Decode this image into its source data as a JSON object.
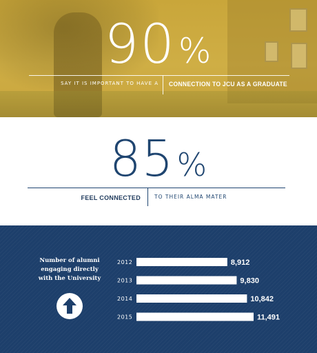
{
  "top": {
    "big_number": "90",
    "big_pct": "%",
    "left_text": "SAY IT IS IMPORTANT TO HAVE A",
    "right_text": "CONNECTION TO JCU AS A GRADUATE"
  },
  "mid": {
    "big_number": "85",
    "big_pct": "%",
    "left_text": "FEEL CONNECTED",
    "right_text": "TO THEIR ALMA MATER"
  },
  "icons": {
    "trend": "up-arrow-icon"
  },
  "colors": {
    "gold": "#c9a63a",
    "navy": "#1d3f6b",
    "navy_text": "#1f4570",
    "bar": "#ffffff"
  },
  "chart_data": {
    "type": "bar",
    "orientation": "horizontal",
    "title": "Number of alumni engaging directly with the University",
    "categories": [
      "2012",
      "2013",
      "2014",
      "2015"
    ],
    "values": [
      8912,
      9830,
      10842,
      11491
    ],
    "value_labels": [
      "8,912",
      "9,830",
      "10,842",
      "11,491"
    ],
    "xlabel": "",
    "ylabel": "",
    "grid": false
  }
}
